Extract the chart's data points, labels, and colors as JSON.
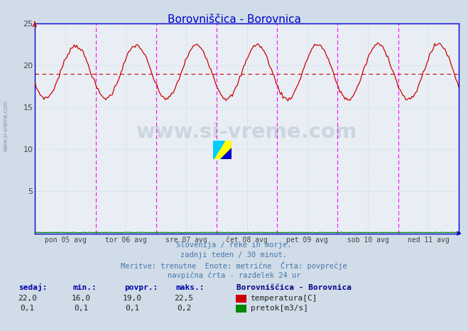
{
  "title": "Borovniščica - Borovnica",
  "title_color": "#0000cc",
  "bg_color": "#d0dce8",
  "plot_bg_color": "#e8eef4",
  "grid_color": "#b8c8d8",
  "temp_color": "#cc0000",
  "flow_color": "#008800",
  "avg_line_color": "#cc0000",
  "avg_value": 19.0,
  "ylim": [
    0,
    25
  ],
  "yticks": [
    0,
    5,
    10,
    15,
    20,
    25
  ],
  "xlabel_days": [
    "pon 05 avg",
    "tor 06 avg",
    "sre 07 avg",
    "čet 08 avg",
    "pet 09 avg",
    "sob 10 avg",
    "ned 11 avg"
  ],
  "n_points": 336,
  "days": 7,
  "footer_lines": [
    "Slovenija / reke in morje.",
    "zadnji teden / 30 minut.",
    "Meritve: trenutne  Enote: metrične  Črta: povprečje",
    "navpična črta - razdelek 24 ur"
  ],
  "legend_title": "Borovniščica - Borovnica",
  "legend_items": [
    {
      "label": "temperatura[C]",
      "color": "#cc0000"
    },
    {
      "label": "pretok[m3/s]",
      "color": "#008800"
    }
  ],
  "table_headers": [
    "sedaj:",
    "min.:",
    "povpr.:",
    "maks.:"
  ],
  "table_rows": [
    [
      "22,0",
      "16,0",
      "19,0",
      "22,5"
    ],
    [
      "0,1",
      "0,1",
      "0,1",
      "0,2"
    ]
  ],
  "vline_color": "#ff00ff",
  "axis_color": "#0000cc",
  "watermark": "www.si-vreme.com",
  "watermark_color": "#1a3060",
  "watermark_alpha": 0.13,
  "left_watermark_color": "#8899aa"
}
